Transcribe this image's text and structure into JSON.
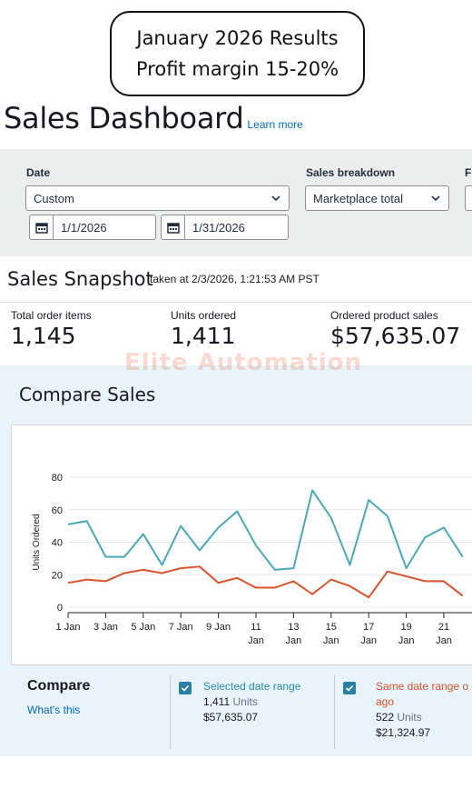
{
  "callout": {
    "line1": "January 2026 Results",
    "line2": "Profit margin 15-20%"
  },
  "header": {
    "title": "Sales Dashboard",
    "learn_more": "Learn more"
  },
  "filters": {
    "date_label": "Date",
    "date_selected": "Custom",
    "start_date": "1/1/2026",
    "end_date": "1/31/2026",
    "breakdown_label": "Sales breakdown",
    "breakdown_selected": "Marketplace total",
    "third_label": "F"
  },
  "snapshot": {
    "title": "Sales Snapshot",
    "taken_at": "taken at 2/3/2026, 1:21:53 AM PST",
    "metrics": [
      {
        "label": "Total order items",
        "value": "1,145"
      },
      {
        "label": "Units ordered",
        "value": "1,411"
      },
      {
        "label": "Ordered product sales",
        "value": "$57,635.07"
      }
    ]
  },
  "watermark": "Elite Automation",
  "compare": {
    "title": "Compare Sales",
    "legend_title": "Compare",
    "whats_this": "What's this",
    "series_a": {
      "name": "Selected date range",
      "units_value": "1,411",
      "units_word": "Units",
      "sales": "$57,635.07"
    },
    "series_b": {
      "name_line1": "Same date range o",
      "name_line2": "ago",
      "units_value": "522",
      "units_word": "Units",
      "sales": "$21,324.97"
    }
  },
  "colors": {
    "series_a": "#4aa9b5",
    "series_b": "#d9542c",
    "link": "#0066c0"
  },
  "chart_data": {
    "type": "line",
    "ylabel": "Units Ordered",
    "ylim": [
      0,
      80
    ],
    "yticks": [
      0,
      20,
      40,
      60,
      80
    ],
    "x": [
      1,
      2,
      3,
      4,
      5,
      6,
      7,
      8,
      9,
      10,
      11,
      12,
      13,
      14,
      15,
      16,
      17,
      18,
      19,
      20,
      21,
      22
    ],
    "xtick_labels": [
      {
        "day": 1,
        "l1": "1 Jan",
        "l2": ""
      },
      {
        "day": 3,
        "l1": "3 Jan",
        "l2": ""
      },
      {
        "day": 5,
        "l1": "5 Jan",
        "l2": ""
      },
      {
        "day": 7,
        "l1": "7 Jan",
        "l2": ""
      },
      {
        "day": 9,
        "l1": "9 Jan",
        "l2": ""
      },
      {
        "day": 11,
        "l1": "11",
        "l2": "Jan"
      },
      {
        "day": 13,
        "l1": "13",
        "l2": "Jan"
      },
      {
        "day": 15,
        "l1": "15",
        "l2": "Jan"
      },
      {
        "day": 17,
        "l1": "17",
        "l2": "Jan"
      },
      {
        "day": 19,
        "l1": "19",
        "l2": "Jan"
      },
      {
        "day": 21,
        "l1": "21",
        "l2": "Jan"
      }
    ],
    "series": [
      {
        "name": "Selected date range",
        "values": [
          51,
          53,
          31,
          31,
          45,
          26,
          50,
          35,
          49,
          59,
          38,
          23,
          24,
          72,
          55,
          26,
          66,
          56,
          24,
          43,
          49,
          31
        ]
      },
      {
        "name": "Same date range ago",
        "values": [
          15,
          17,
          16,
          21,
          23,
          21,
          24,
          25,
          15,
          18,
          12,
          12,
          16,
          8,
          17,
          13,
          6,
          22,
          19,
          16,
          16,
          7
        ]
      }
    ]
  }
}
